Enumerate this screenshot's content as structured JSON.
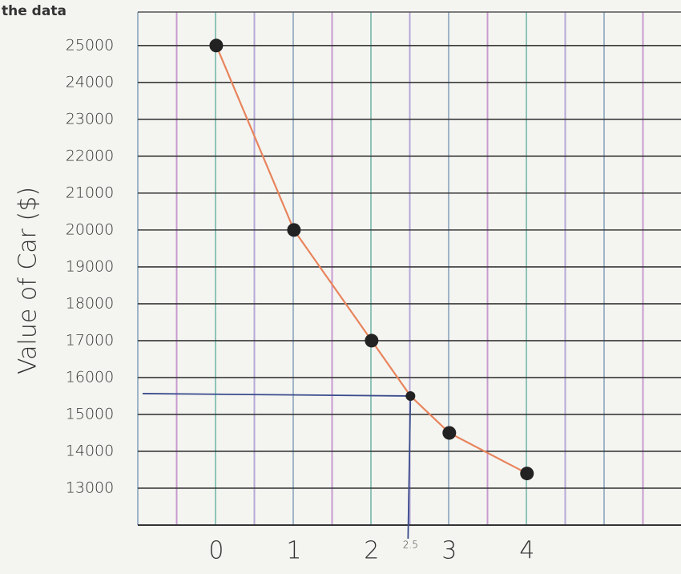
{
  "chart_data": {
    "type": "line",
    "title": "the data",
    "y_label": "Value of Car ($)",
    "x": [
      0,
      1,
      2,
      2.5,
      3,
      4
    ],
    "values": [
      25000,
      20000,
      17000,
      15500,
      14500,
      13400
    ],
    "color": "#e8845c",
    "marker_color": "#222222",
    "guide_color": "#3b4c8c",
    "xlim": [
      -2,
      5.9
    ],
    "ylim": [
      12000,
      25800
    ],
    "xticks": [
      0,
      1,
      2,
      2.5,
      3,
      4
    ],
    "yticks": [
      13000,
      14000,
      15000,
      16000,
      17000,
      18000,
      19000,
      20000,
      21000,
      22000,
      23000,
      24000,
      25000
    ],
    "grid": true
  }
}
